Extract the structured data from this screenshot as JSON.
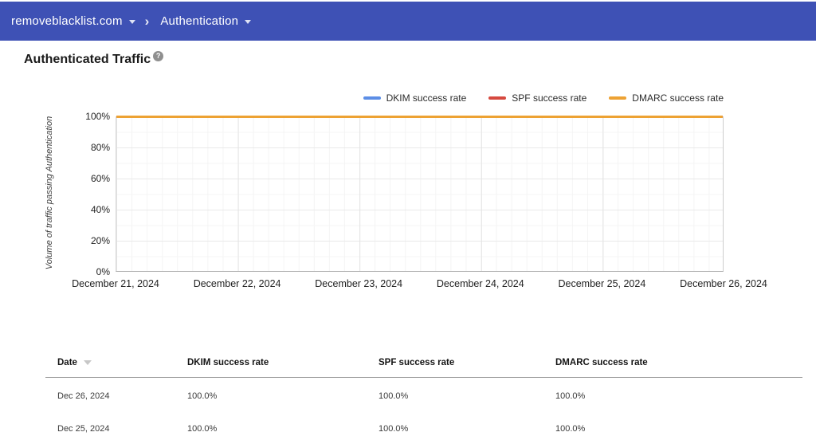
{
  "header": {
    "domain": "removeblacklist.com",
    "section": "Authentication"
  },
  "page": {
    "title": "Authenticated Traffic",
    "help_icon": "?"
  },
  "chart_data": {
    "type": "line",
    "title": "Authenticated Traffic",
    "ylabel": "Volume of traffic passing Authentication",
    "ylim": [
      0,
      100
    ],
    "grid": true,
    "legend_position": "top-right",
    "y_ticks": [
      "100%",
      "80%",
      "60%",
      "40%",
      "20%",
      "0%"
    ],
    "x_labels": [
      "December 21, 2024",
      "December 22, 2024",
      "December 23, 2024",
      "December 24, 2024",
      "December 25, 2024",
      "December 26, 2024"
    ],
    "series": [
      {
        "name": "DKIM success rate",
        "color": "#5c8ee6",
        "values": [
          100,
          100,
          100,
          100,
          100,
          100
        ]
      },
      {
        "name": "SPF success rate",
        "color": "#d6493f",
        "values": [
          100,
          100,
          100,
          100,
          100,
          100
        ]
      },
      {
        "name": "DMARC success rate",
        "color": "#eda233",
        "values": [
          100,
          100,
          100,
          100,
          100,
          100
        ]
      }
    ]
  },
  "table": {
    "columns": [
      "Date",
      "DKIM success rate",
      "SPF success rate",
      "DMARC success rate"
    ],
    "sort_column": "Date",
    "sort_direction": "desc",
    "rows": [
      [
        "Dec 26, 2024",
        "100.0%",
        "100.0%",
        "100.0%"
      ],
      [
        "Dec 25, 2024",
        "100.0%",
        "100.0%",
        "100.0%"
      ]
    ]
  },
  "colors": {
    "topbar_bg": "#3e51b5",
    "dkim": "#5c8ee6",
    "spf": "#d6493f",
    "dmarc": "#eda233"
  }
}
